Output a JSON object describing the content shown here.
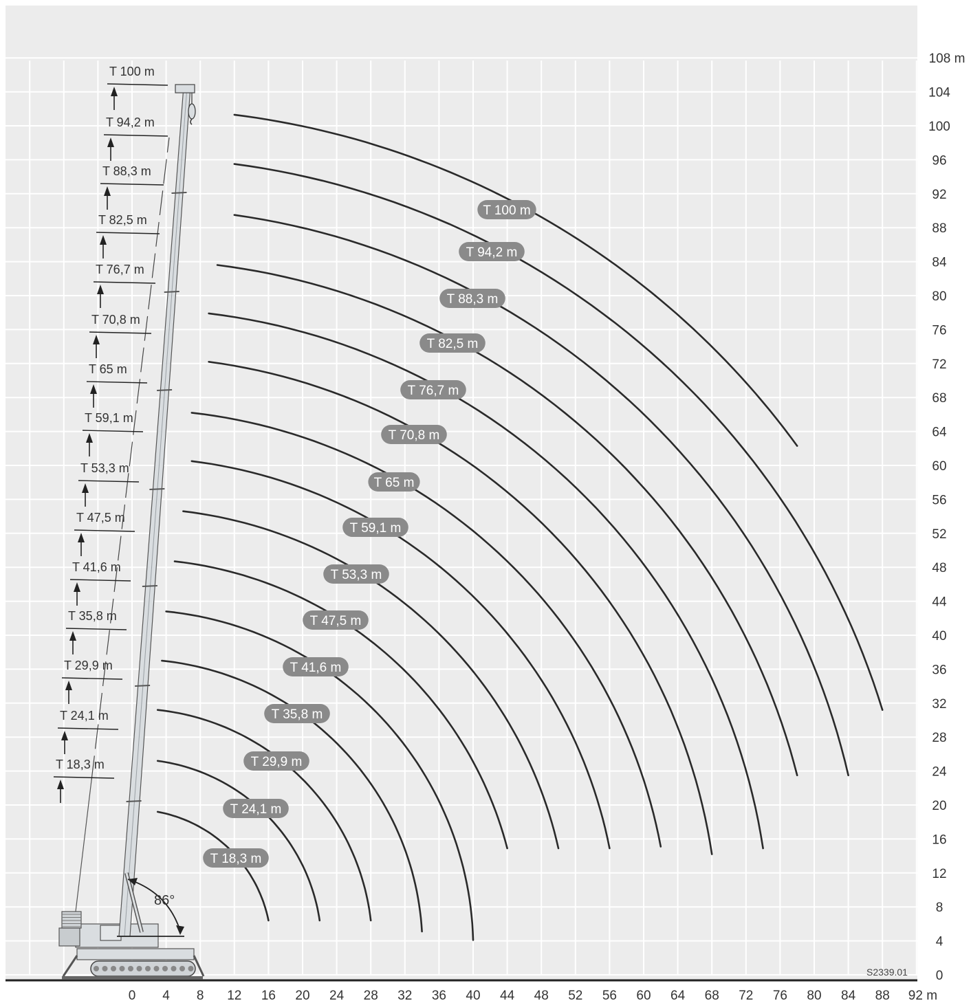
{
  "chart_data": {
    "type": "line",
    "title": "",
    "xlabel": "",
    "ylabel": "",
    "x_unit": "m",
    "y_unit": "m",
    "xlim": [
      0,
      92
    ],
    "ylim": [
      0,
      108
    ],
    "x_ticks": [
      "0",
      "4",
      "8",
      "12",
      "16",
      "20",
      "24",
      "28",
      "32",
      "36",
      "40",
      "44",
      "48",
      "52",
      "56",
      "60",
      "64",
      "68",
      "72",
      "76",
      "80",
      "84",
      "88",
      "92 m"
    ],
    "y_ticks": [
      "0",
      "4",
      "8",
      "12",
      "16",
      "20",
      "24",
      "28",
      "32",
      "36",
      "40",
      "44",
      "48",
      "52",
      "56",
      "60",
      "64",
      "68",
      "72",
      "76",
      "80",
      "84",
      "88",
      "92",
      "96",
      "100",
      "104",
      "108 m"
    ],
    "boom_angle": "86°",
    "reference_code": "S2339.01",
    "grid": true,
    "series": [
      {
        "name": "T 18,3 m",
        "start": [
          3.0,
          19.2
        ],
        "end": [
          16.0,
          6.4
        ]
      },
      {
        "name": "T 24,1 m",
        "start": [
          3.0,
          25.2
        ],
        "end": [
          22.0,
          6.4
        ]
      },
      {
        "name": "T 29,9 m",
        "start": [
          3.0,
          31.2
        ],
        "end": [
          28.0,
          6.4
        ]
      },
      {
        "name": "T 35,8 m",
        "start": [
          3.5,
          37.0
        ],
        "end": [
          34.0,
          5.1
        ]
      },
      {
        "name": "T 41,6 m",
        "start": [
          4.0,
          42.8
        ],
        "end": [
          40.0,
          4.1
        ]
      },
      {
        "name": "T 47,5 m",
        "start": [
          5.0,
          48.7
        ],
        "end": [
          44.0,
          14.9
        ]
      },
      {
        "name": "T 53,3 m",
        "start": [
          6.0,
          54.6
        ],
        "end": [
          50.0,
          14.9
        ]
      },
      {
        "name": "T 59,1 m",
        "start": [
          7.0,
          60.5
        ],
        "end": [
          56.0,
          14.9
        ]
      },
      {
        "name": "T 65 m",
        "start": [
          7.0,
          66.2
        ],
        "end": [
          62.0,
          15.1
        ]
      },
      {
        "name": "T 70,8 m",
        "start": [
          9.0,
          72.2
        ],
        "end": [
          68.0,
          14.2
        ]
      },
      {
        "name": "T 76,7 m",
        "start": [
          9.0,
          77.9
        ],
        "end": [
          74.0,
          14.9
        ]
      },
      {
        "name": "T 82,5 m",
        "start": [
          10.0,
          83.6
        ],
        "end": [
          78.0,
          23.5
        ]
      },
      {
        "name": "T 88,3 m",
        "start": [
          12.0,
          89.5
        ],
        "end": [
          84.0,
          23.5
        ]
      },
      {
        "name": "T 94,2 m",
        "start": [
          12.0,
          95.5
        ],
        "end": [
          88.0,
          31.2
        ]
      },
      {
        "name": "T 100 m",
        "start": [
          12.0,
          101.3
        ],
        "end": [
          78.0,
          62.3
        ]
      }
    ],
    "boom_tip_labels": [
      "T 100 m",
      "T 94,2 m",
      "T 88,3 m",
      "T 82,5 m",
      "T 76,7 m",
      "T 70,8 m",
      "T 65 m",
      "T 59,1 m",
      "T 53,3 m",
      "T 47,5 m",
      "T 41,6 m",
      "T 35,8 m",
      "T 29,9 m",
      "T 24,1 m",
      "T 18,3 m"
    ],
    "colors": {
      "curve": "#2a2a2a",
      "pill": "#8a8a8a",
      "grid_bg": "#ececec",
      "grid_line": "#ffffff",
      "boom": "#d9dde0"
    }
  }
}
